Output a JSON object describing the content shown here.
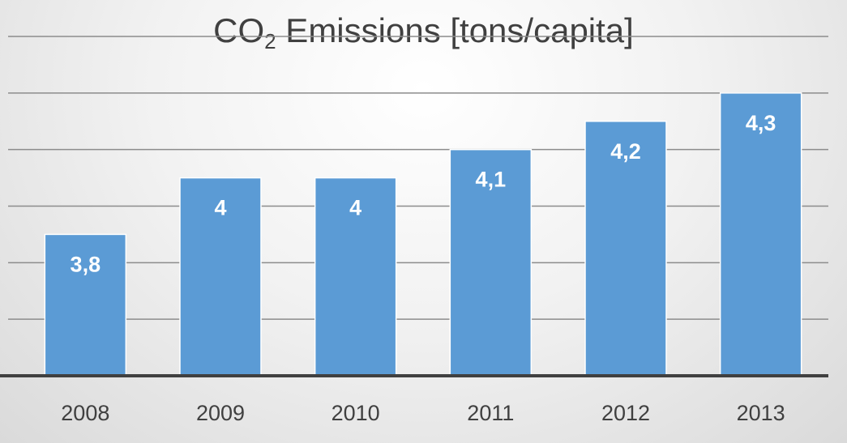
{
  "chart_data": {
    "type": "bar",
    "title": {
      "prefix": "CO",
      "subscript": "2",
      "suffix": " Emissions [tons/capita]"
    },
    "categories": [
      "2008",
      "2009",
      "2010",
      "2011",
      "2012",
      "2013"
    ],
    "values": [
      3.8,
      4.0,
      4.0,
      4.1,
      4.2,
      4.3
    ],
    "data_labels": [
      "3,8",
      "4",
      "4",
      "4,1",
      "4,2",
      "4,3"
    ],
    "xlabel": "",
    "ylabel": "",
    "ylim": [
      3.3,
      4.5
    ],
    "grid": true,
    "legend": "none",
    "colors": {
      "bar": "#5b9bd5",
      "bar_edge": "#ffffff",
      "label": "#ffffff",
      "axis": "#404040",
      "grid": "#8c8c8c",
      "tick_text": "#404040"
    }
  }
}
